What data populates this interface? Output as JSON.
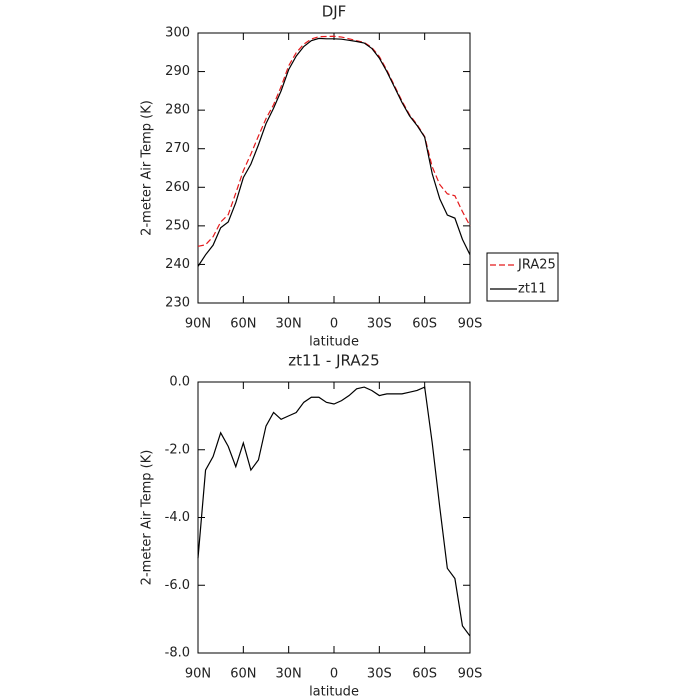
{
  "chart_data": [
    {
      "type": "line",
      "title": "DJF",
      "xlabel": "latitude",
      "ylabel": "2-meter Air Temp (K)",
      "x": [
        90,
        85,
        80,
        75,
        70,
        65,
        60,
        55,
        50,
        45,
        40,
        35,
        30,
        25,
        20,
        15,
        10,
        5,
        0,
        -5,
        -10,
        -15,
        -20,
        -25,
        -30,
        -35,
        -40,
        -45,
        -50,
        -55,
        -60,
        -65,
        -70,
        -75,
        -80,
        -85,
        -90
      ],
      "xlim": [
        90,
        -90
      ],
      "xticks": [
        {
          "value": 90,
          "label": "90N"
        },
        {
          "value": 60,
          "label": "60N"
        },
        {
          "value": 30,
          "label": "30N"
        },
        0,
        {
          "value": -30,
          "label": "30S"
        },
        {
          "value": -60,
          "label": "60S"
        },
        {
          "value": -90,
          "label": "90S"
        }
      ],
      "ylim": [
        230,
        300
      ],
      "yticks": [
        230,
        240,
        250,
        260,
        270,
        280,
        290,
        300
      ],
      "legend": "right",
      "series": [
        {
          "name": "JRA25",
          "color": "#e41a1c",
          "linestyle": "dashed",
          "values": [
            244.7,
            245.1,
            247.2,
            251,
            252.9,
            258.5,
            264.3,
            268.6,
            273.3,
            277.8,
            281.4,
            286.1,
            291.5,
            294.9,
            297.1,
            298.45,
            299.05,
            299.1,
            299.15,
            298.95,
            298.5,
            298,
            297.55,
            296.25,
            293.9,
            290.35,
            286.35,
            282.35,
            278.8,
            276.25,
            273.15,
            265.3,
            260.7,
            258.3,
            257.8,
            253.7,
            250
          ]
        },
        {
          "name": "zt11",
          "color": "#000000",
          "linestyle": "solid",
          "values": [
            239.5,
            242.5,
            245,
            249.5,
            251,
            256,
            262.5,
            266,
            271,
            276.5,
            280.5,
            285,
            290.5,
            294,
            296.5,
            298,
            298.6,
            298.5,
            298.5,
            298.4,
            298.1,
            297.8,
            297.4,
            296,
            293.5,
            290,
            286,
            282,
            278.5,
            276,
            273,
            263.5,
            257,
            252.8,
            252,
            246.5,
            242.5
          ]
        }
      ]
    },
    {
      "type": "line",
      "title": "zt11 - JRA25",
      "xlabel": "latitude",
      "ylabel": "2-meter Air Temp (K)",
      "x": [
        90,
        85,
        80,
        75,
        70,
        65,
        60,
        55,
        50,
        45,
        40,
        35,
        30,
        25,
        20,
        15,
        10,
        5,
        0,
        -5,
        -10,
        -15,
        -20,
        -25,
        -30,
        -35,
        -40,
        -45,
        -50,
        -55,
        -60,
        -65,
        -70,
        -75,
        -80,
        -85,
        -90
      ],
      "xlim": [
        90,
        -90
      ],
      "xticks": [
        {
          "value": 90,
          "label": "90N"
        },
        {
          "value": 60,
          "label": "60N"
        },
        {
          "value": 30,
          "label": "30N"
        },
        0,
        {
          "value": -30,
          "label": "30S"
        },
        {
          "value": -60,
          "label": "60S"
        },
        {
          "value": -90,
          "label": "90S"
        }
      ],
      "ylim": [
        -8,
        0
      ],
      "yticks": [
        {
          "value": -8,
          "label": "-8.0"
        },
        {
          "value": -6,
          "label": "-6.0"
        },
        {
          "value": -4,
          "label": "-4.0"
        },
        {
          "value": -2,
          "label": "-2.0"
        },
        {
          "value": 0,
          "label": "0.0"
        }
      ],
      "series": [
        {
          "color": "#000000",
          "linestyle": "solid",
          "values": [
            -5.2,
            -2.6,
            -2.2,
            -1.5,
            -1.9,
            -2.5,
            -1.8,
            -2.6,
            -2.3,
            -1.3,
            -0.9,
            -1.1,
            -1.0,
            -0.9,
            -0.6,
            -0.45,
            -0.45,
            -0.6,
            -0.65,
            -0.55,
            -0.4,
            -0.2,
            -0.15,
            -0.25,
            -0.4,
            -0.35,
            -0.35,
            -0.35,
            -0.3,
            -0.25,
            -0.15,
            -1.8,
            -3.7,
            -5.5,
            -5.8,
            -7.2,
            -7.5
          ]
        }
      ]
    }
  ]
}
